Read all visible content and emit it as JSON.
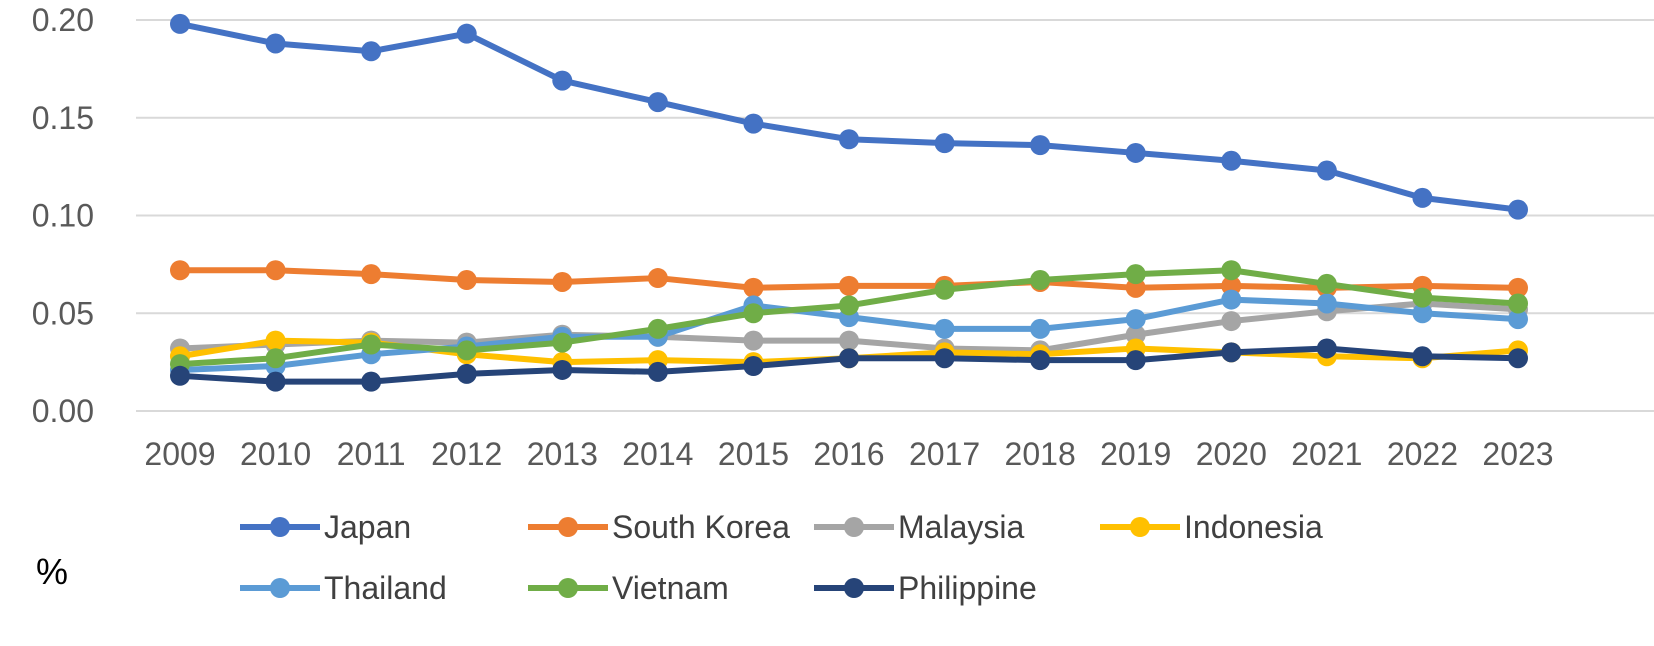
{
  "chart_data": {
    "type": "line",
    "title": "",
    "xlabel": "",
    "ylabel": "",
    "unit_label": "%",
    "x": [
      "2009",
      "2010",
      "2011",
      "2012",
      "2013",
      "2014",
      "2015",
      "2016",
      "2017",
      "2018",
      "2019",
      "2020",
      "2021",
      "2022",
      "2023"
    ],
    "ylim": [
      0,
      0.2
    ],
    "yticks": [
      "0.00",
      "0.05",
      "0.10",
      "0.15",
      "0.20"
    ],
    "grid": true,
    "legend_position": "bottom",
    "series": [
      {
        "name": "Japan",
        "color": "#4472C4",
        "values": [
          0.198,
          0.188,
          0.184,
          0.193,
          0.169,
          0.158,
          0.147,
          0.139,
          0.137,
          0.136,
          0.132,
          0.128,
          0.123,
          0.109,
          0.103
        ]
      },
      {
        "name": "South Korea",
        "color": "#ED7D31",
        "values": [
          0.072,
          0.072,
          0.07,
          0.067,
          0.066,
          0.068,
          0.063,
          0.064,
          0.064,
          0.066,
          0.063,
          0.064,
          0.063,
          0.064,
          0.063
        ]
      },
      {
        "name": "Malaysia",
        "color": "#A5A5A5",
        "values": [
          0.032,
          0.034,
          0.036,
          0.035,
          0.039,
          0.038,
          0.036,
          0.036,
          0.032,
          0.031,
          0.039,
          0.046,
          0.051,
          0.055,
          0.052
        ]
      },
      {
        "name": "Indonesia",
        "color": "#FFC000",
        "values": [
          0.028,
          0.036,
          0.035,
          0.029,
          0.025,
          0.026,
          0.025,
          0.027,
          0.03,
          0.029,
          0.032,
          0.03,
          0.028,
          0.027,
          0.031
        ]
      },
      {
        "name": "Thailand",
        "color": "#5B9BD5",
        "values": [
          0.021,
          0.023,
          0.029,
          0.033,
          0.038,
          0.038,
          0.054,
          0.048,
          0.042,
          0.042,
          0.047,
          0.057,
          0.055,
          0.05,
          0.047
        ]
      },
      {
        "name": "Vietnam",
        "color": "#70AD47",
        "values": [
          0.024,
          0.027,
          0.034,
          0.031,
          0.035,
          0.042,
          0.05,
          0.054,
          0.062,
          0.067,
          0.07,
          0.072,
          0.065,
          0.058,
          0.055
        ]
      },
      {
        "name": "Philippine",
        "color": "#264478",
        "values": [
          0.018,
          0.015,
          0.015,
          0.019,
          0.021,
          0.02,
          0.023,
          0.027,
          0.027,
          0.026,
          0.026,
          0.03,
          0.032,
          0.028,
          0.027
        ]
      }
    ]
  }
}
